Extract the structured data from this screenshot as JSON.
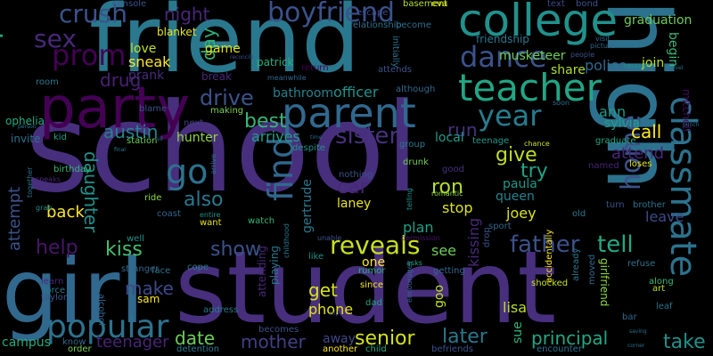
{
  "words": [
    {
      "text": "school",
      "color": "#472f7d"
    },
    {
      "text": "student",
      "color": "#472f7d"
    },
    {
      "text": "friend",
      "color": "#2a788e"
    },
    {
      "text": "high",
      "color": "#2c728e"
    },
    {
      "text": "girl",
      "color": "#31688e"
    },
    {
      "text": "party",
      "color": "#440154"
    },
    {
      "text": "college",
      "color": "#21918c"
    },
    {
      "text": "parent",
      "color": "#31688e"
    },
    {
      "text": "teacher",
      "color": "#21a685"
    },
    {
      "text": "classmate",
      "color": "#2c728e"
    },
    {
      "text": "house",
      "color": "#22a884"
    },
    {
      "text": "boyfriend",
      "color": "#3b528b"
    },
    {
      "text": "prom",
      "color": "#440154"
    },
    {
      "text": "dance",
      "color": "#3b528b"
    },
    {
      "text": "crush",
      "color": "#3b528b"
    },
    {
      "text": "sex",
      "color": "#482878"
    },
    {
      "text": "year",
      "color": "#287c8e"
    },
    {
      "text": "popular",
      "color": "#2c728e"
    },
    {
      "text": "find",
      "color": "#31688e"
    },
    {
      "text": "home",
      "color": "#3b528b"
    },
    {
      "text": "go",
      "color": "#2c728e"
    },
    {
      "text": "sister",
      "color": "#46327e"
    },
    {
      "text": "also",
      "color": "#2a788e"
    },
    {
      "text": "car",
      "color": "#482878"
    },
    {
      "text": "reveals",
      "color": "#c8e020"
    },
    {
      "text": "father",
      "color": "#3b528b"
    },
    {
      "text": "tell",
      "color": "#22a884"
    },
    {
      "text": "kiss",
      "color": "#44bf70"
    },
    {
      "text": "show",
      "color": "#3b528b"
    },
    {
      "text": "help",
      "color": "#481668"
    },
    {
      "text": "attempt",
      "color": "#3b528b"
    },
    {
      "text": "back",
      "color": "#fde725"
    },
    {
      "text": "make",
      "color": "#3e4989"
    },
    {
      "text": "date",
      "color": "#6ece58"
    },
    {
      "text": "mother",
      "color": "#433e85"
    },
    {
      "text": "senior",
      "color": "#d2e21b"
    },
    {
      "text": "later",
      "color": "#2a788e"
    },
    {
      "text": "principal",
      "color": "#22a884"
    },
    {
      "text": "take",
      "color": "#21918c"
    },
    {
      "text": "teenager",
      "color": "#482475"
    },
    {
      "text": "campus",
      "color": "#25ab82"
    },
    {
      "text": "drive",
      "color": "#3b528b"
    },
    {
      "text": "best",
      "color": "#35b779"
    },
    {
      "text": "austin",
      "color": "#26828e"
    },
    {
      "text": "daughter",
      "color": "#21918c"
    },
    {
      "text": "night",
      "color": "#482878"
    },
    {
      "text": "drug",
      "color": "#482173"
    },
    {
      "text": "day",
      "color": "#2fb47c"
    },
    {
      "text": "run",
      "color": "#46327e"
    },
    {
      "text": "give",
      "color": "#c0df25"
    },
    {
      "text": "try",
      "color": "#20a486"
    },
    {
      "text": "ron",
      "color": "#b5de2b"
    },
    {
      "text": "call",
      "color": "#fde725"
    },
    {
      "text": "ann",
      "color": "#1f9a8a"
    },
    {
      "text": "attend",
      "color": "#482878"
    },
    {
      "text": "get",
      "color": "#d8e219"
    },
    {
      "text": "joey",
      "color": "#dde318"
    },
    {
      "text": "plan",
      "color": "#1fa088"
    },
    {
      "text": "musketeer",
      "color": "#6ece58"
    },
    {
      "text": "police",
      "color": "#31688e"
    },
    {
      "text": "sylvia",
      "color": "#1f9e89"
    },
    {
      "text": "local",
      "color": "#1f9e89"
    },
    {
      "text": "arrives",
      "color": "#1fa188"
    },
    {
      "text": "stop",
      "color": "#dde318"
    },
    {
      "text": "queen",
      "color": "#26828e"
    },
    {
      "text": "paula",
      "color": "#1f9a8a"
    },
    {
      "text": "leave",
      "color": "#3e4a89"
    },
    {
      "text": "lisa",
      "color": "#bddf26"
    },
    {
      "text": "phone",
      "color": "#e5e419"
    },
    {
      "text": "kissing",
      "color": "#472a7a"
    },
    {
      "text": "see",
      "color": "#6ece58"
    },
    {
      "text": "sneak",
      "color": "#fde725"
    },
    {
      "text": "love",
      "color": "#c2df23"
    },
    {
      "text": "prank",
      "color": "#472c7a"
    },
    {
      "text": "game",
      "color": "#e2e418"
    },
    {
      "text": "bathroom",
      "color": "#26828e"
    },
    {
      "text": "officer",
      "color": "#20928c"
    },
    {
      "text": "hunter",
      "color": "#90d743"
    },
    {
      "text": "gertrude",
      "color": "#2a788e"
    },
    {
      "text": "laney",
      "color": "#eae51a"
    },
    {
      "text": "goo",
      "color": "#c5e021"
    },
    {
      "text": "one",
      "color": "#fde725"
    },
    {
      "text": "away",
      "color": "#3f4889"
    },
    {
      "text": "sue",
      "color": "#2fb47c"
    },
    {
      "text": "invite",
      "color": "#2c728e"
    },
    {
      "text": "join",
      "color": "#bddf26"
    },
    {
      "text": "share",
      "color": "#b0dd2f"
    },
    {
      "text": "graduation",
      "color": "#6ece58"
    },
    {
      "text": "begin",
      "color": "#35b779"
    },
    {
      "text": "mitchell",
      "color": "#460b5e"
    },
    {
      "text": "ophelia",
      "color": "#25ab82"
    },
    {
      "text": "blanket",
      "color": "#e7e419"
    },
    {
      "text": "friendship",
      "color": "#2a788e"
    },
    {
      "text": "escape",
      "color": "#3e4989"
    },
    {
      "text": "basement",
      "color": "#b8de29"
    },
    {
      "text": "relationship",
      "color": "#2d718e"
    },
    {
      "text": "become",
      "color": "#2e6d8e"
    },
    {
      "text": "eva",
      "color": "#dde318"
    },
    {
      "text": "console",
      "color": "#3b528b"
    },
    {
      "text": "text",
      "color": "#3e4989"
    },
    {
      "text": "bond",
      "color": "#3b528b"
    },
    {
      "text": "patrick",
      "color": "#29af7f"
    },
    {
      "text": "meanwhile",
      "color": "#31688e"
    },
    {
      "text": "initially",
      "color": "#2c728e"
    },
    {
      "text": "attends",
      "color": "#3b528b"
    },
    {
      "text": "return",
      "color": "#440154"
    },
    {
      "text": "although",
      "color": "#31688e"
    },
    {
      "text": "room",
      "color": "#2a788e"
    },
    {
      "text": "blame",
      "color": "#3b528b"
    },
    {
      "text": "making",
      "color": "#7ad151"
    },
    {
      "text": "next",
      "color": "#433e85"
    },
    {
      "text": "kid",
      "color": "#1f9e89"
    },
    {
      "text": "station",
      "color": "#6ece58"
    },
    {
      "text": "group",
      "color": "#2a788e"
    },
    {
      "text": "teenage",
      "color": "#1e9b8a"
    },
    {
      "text": "chance",
      "color": "#c8e020"
    },
    {
      "text": "graduate",
      "color": "#22a884"
    },
    {
      "text": "named",
      "color": "#482475"
    },
    {
      "text": "loses",
      "color": "#e5e419"
    },
    {
      "text": "birthday",
      "color": "#35b779"
    },
    {
      "text": "despite",
      "color": "#21918c"
    },
    {
      "text": "drunk",
      "color": "#6ece58"
    },
    {
      "text": "good",
      "color": "#46327e"
    },
    {
      "text": "ride",
      "color": "#8fd744"
    },
    {
      "text": "coast",
      "color": "#31688e"
    },
    {
      "text": "want",
      "color": "#e5e419"
    },
    {
      "text": "well",
      "color": "#21918c"
    },
    {
      "text": "face",
      "color": "#2c728e"
    },
    {
      "text": "cope",
      "color": "#2a788e"
    },
    {
      "text": "learn",
      "color": "#482878"
    },
    {
      "text": "force",
      "color": "#2a788e"
    },
    {
      "text": "taylor",
      "color": "#39568c"
    },
    {
      "text": "know",
      "color": "#31688e"
    },
    {
      "text": "order",
      "color": "#7ad151"
    },
    {
      "text": "address",
      "color": "#2a788e"
    },
    {
      "text": "detention",
      "color": "#2a788e"
    },
    {
      "text": "another",
      "color": "#fde725"
    },
    {
      "text": "child",
      "color": "#25ab82"
    },
    {
      "text": "befriends",
      "color": "#3b528b"
    },
    {
      "text": "encounter",
      "color": "#2c728e"
    },
    {
      "text": "romantic",
      "color": "#8fd744"
    },
    {
      "text": "nothing",
      "color": "#3b528b"
    },
    {
      "text": "sport",
      "color": "#31688e"
    },
    {
      "text": "old",
      "color": "#2a788e"
    },
    {
      "text": "turn",
      "color": "#3b528b"
    },
    {
      "text": "brother",
      "color": "#2c728e"
    },
    {
      "text": "refuse",
      "color": "#2c728e"
    },
    {
      "text": "along",
      "color": "#35b779"
    },
    {
      "text": "art",
      "color": "#b8de29"
    },
    {
      "text": "leaf",
      "color": "#2c728e"
    },
    {
      "text": "bar",
      "color": "#31688e"
    },
    {
      "text": "since",
      "color": "#fde725"
    },
    {
      "text": "dad",
      "color": "#20a486"
    },
    {
      "text": "shocked",
      "color": "#c5e021"
    },
    {
      "text": "moved",
      "color": "#31688e"
    },
    {
      "text": "already",
      "color": "#2a788e"
    },
    {
      "text": "accidentally",
      "color": "#fde725"
    },
    {
      "text": "girlfriend",
      "color": "#8fd744"
    },
    {
      "text": "watch",
      "color": "#35b779"
    },
    {
      "text": "getting",
      "color": "#31688e"
    },
    {
      "text": "rumor",
      "color": "#29af7f"
    },
    {
      "text": "playing",
      "color": "#2a788e"
    },
    {
      "text": "attending",
      "color": "#482878"
    },
    {
      "text": "becomes",
      "color": "#3b528b"
    },
    {
      "text": "alcohol",
      "color": "#31688e"
    },
    {
      "text": "sam",
      "color": "#fde725"
    },
    {
      "text": "like",
      "color": "#21918c"
    },
    {
      "text": "stranger",
      "color": "#31688e"
    },
    {
      "text": "asks",
      "color": "#22a884"
    },
    {
      "text": "drop",
      "color": "#3b528b"
    },
    {
      "text": "permission",
      "color": "#481769"
    },
    {
      "text": "unable",
      "color": "#3b528b"
    },
    {
      "text": "speaks",
      "color": "#482878"
    },
    {
      "text": "together",
      "color": "#2c728e"
    },
    {
      "text": "grab",
      "color": "#21918c"
    },
    {
      "text": "arrive",
      "color": "#2c728e"
    },
    {
      "text": "entire",
      "color": "#21918c"
    },
    {
      "text": "childhood",
      "color": "#2a788e"
    },
    {
      "text": "rescue",
      "color": "#21918c"
    },
    {
      "text": "soon",
      "color": "#2c728e"
    },
    {
      "text": "telling",
      "color": "#21918c"
    },
    {
      "text": "visit",
      "color": "#31688e"
    },
    {
      "text": "people",
      "color": "#3b528b"
    },
    {
      "text": "picture",
      "color": "#31688e"
    },
    {
      "text": "daniel",
      "color": "#2c728e"
    },
    {
      "text": "punch",
      "color": "#31688e"
    },
    {
      "text": "reconcile",
      "color": "#3b528b"
    },
    {
      "text": "hill",
      "color": "#2c728e"
    },
    {
      "text": "final",
      "color": "#2a788e"
    },
    {
      "text": "time",
      "color": "#31688e"
    },
    {
      "text": "person",
      "color": "#2a788e"
    },
    {
      "text": "saving",
      "color": "#2c728e"
    },
    {
      "text": "corner",
      "color": "#2c728e"
    },
    {
      "text": "trip",
      "color": "#3b528b"
    },
    {
      "text": "encourages",
      "color": "#31688e"
    },
    {
      "text": "break",
      "color": "#482878"
    }
  ]
}
